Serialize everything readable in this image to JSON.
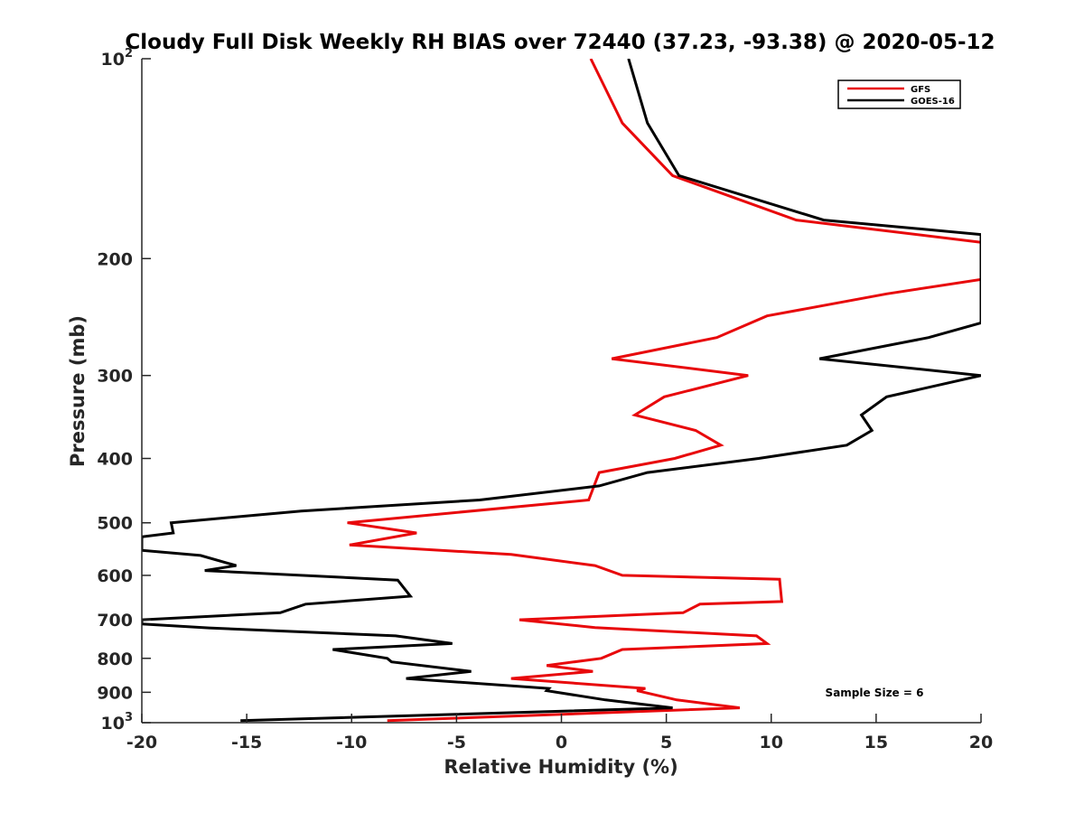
{
  "chart_data": {
    "type": "line",
    "title": "Cloudy Full Disk Weekly RH BIAS over 72440 (37.23, -93.38) @ 2020-05-12",
    "xlabel": "Relative Humidity (%)",
    "ylabel": "Pressure (mb)",
    "xlim": [
      -20,
      20
    ],
    "ylim": [
      100,
      1000
    ],
    "y_scale": "log",
    "y_reversed": true,
    "x_ticks": [
      -20,
      -15,
      -10,
      -5,
      0,
      5,
      10,
      15,
      20
    ],
    "x_tick_labels": [
      "-20",
      "-15",
      "-10",
      "-5",
      "0",
      "5",
      "10",
      "15",
      "20"
    ],
    "y_ticks": [
      100,
      200,
      300,
      400,
      500,
      600,
      700,
      800,
      900,
      1000
    ],
    "y_tick_labels": [
      {
        "base": "10",
        "exp": "2"
      },
      {
        "base": "200",
        "exp": ""
      },
      {
        "base": "300",
        "exp": ""
      },
      {
        "base": "400",
        "exp": ""
      },
      {
        "base": "500",
        "exp": ""
      },
      {
        "base": "600",
        "exp": ""
      },
      {
        "base": "700",
        "exp": ""
      },
      {
        "base": "800",
        "exp": ""
      },
      {
        "base": "900",
        "exp": ""
      },
      {
        "base": "10",
        "exp": "3"
      }
    ],
    "grid": false,
    "legend_position": "top-right",
    "annotation": "Sample Size = 6",
    "series": [
      {
        "name": "GFS",
        "color": "#e8080b",
        "points": [
          [
            1.4,
            100
          ],
          [
            2.9,
            125
          ],
          [
            5.3,
            150
          ],
          [
            11.2,
            175
          ],
          [
            20,
            189
          ],
          [
            20,
            215
          ],
          [
            15.5,
            226
          ],
          [
            9.8,
            244
          ],
          [
            7.4,
            263
          ],
          [
            2.4,
            283
          ],
          [
            8.9,
            300
          ],
          [
            4.9,
            323
          ],
          [
            3.5,
            344
          ],
          [
            6.4,
            363
          ],
          [
            7.6,
            382
          ],
          [
            5.4,
            400
          ],
          [
            1.8,
            420
          ],
          [
            1.3,
            462
          ],
          [
            -10.2,
            500
          ],
          [
            -6.9,
            518
          ],
          [
            -10.1,
            540
          ],
          [
            -2.4,
            558
          ],
          [
            1.6,
            580
          ],
          [
            2.9,
            600
          ],
          [
            10.4,
            608
          ],
          [
            10.5,
            657
          ],
          [
            6.6,
            663
          ],
          [
            5.8,
            683
          ],
          [
            -2.0,
            700
          ],
          [
            1.6,
            719
          ],
          [
            9.3,
            740
          ],
          [
            9.8,
            760
          ],
          [
            2.9,
            776
          ],
          [
            1.9,
            800
          ],
          [
            -0.7,
            820
          ],
          [
            1.5,
            837
          ],
          [
            -2.4,
            858
          ],
          [
            4.0,
            888
          ],
          [
            3.6,
            895
          ],
          [
            5.5,
            924
          ],
          [
            8.5,
            950
          ],
          [
            -8.3,
            993
          ]
        ]
      },
      {
        "name": "GOES-16",
        "color": "#000000",
        "points": [
          [
            3.2,
            100
          ],
          [
            4.1,
            125
          ],
          [
            5.6,
            150
          ],
          [
            12.5,
            175
          ],
          [
            20,
            184
          ],
          [
            20,
            250
          ],
          [
            17.5,
            263
          ],
          [
            12.3,
            283
          ],
          [
            20,
            300
          ],
          [
            15.5,
            323
          ],
          [
            14.3,
            344
          ],
          [
            14.8,
            363
          ],
          [
            13.6,
            382
          ],
          [
            9.4,
            400
          ],
          [
            4.1,
            420
          ],
          [
            1.8,
            440
          ],
          [
            -3.9,
            462
          ],
          [
            -12.4,
            480
          ],
          [
            -18.6,
            500
          ],
          [
            -18.5,
            518
          ],
          [
            -20,
            525
          ],
          [
            -20,
            550
          ],
          [
            -17.2,
            560
          ],
          [
            -15.5,
            580
          ],
          [
            -17.0,
            590
          ],
          [
            -7.8,
            610
          ],
          [
            -7.2,
            645
          ],
          [
            -12.2,
            663
          ],
          [
            -13.4,
            683
          ],
          [
            -20,
            700
          ],
          [
            -20,
            710
          ],
          [
            -16.8,
            720
          ],
          [
            -7.9,
            740
          ],
          [
            -5.2,
            760
          ],
          [
            -10.9,
            776
          ],
          [
            -8.3,
            800
          ],
          [
            -8.1,
            810
          ],
          [
            -4.3,
            837
          ],
          [
            -7.4,
            858
          ],
          [
            -0.6,
            888
          ],
          [
            -0.7,
            895
          ],
          [
            2.1,
            924
          ],
          [
            5.3,
            950
          ],
          [
            -15.3,
            993
          ]
        ]
      }
    ]
  }
}
